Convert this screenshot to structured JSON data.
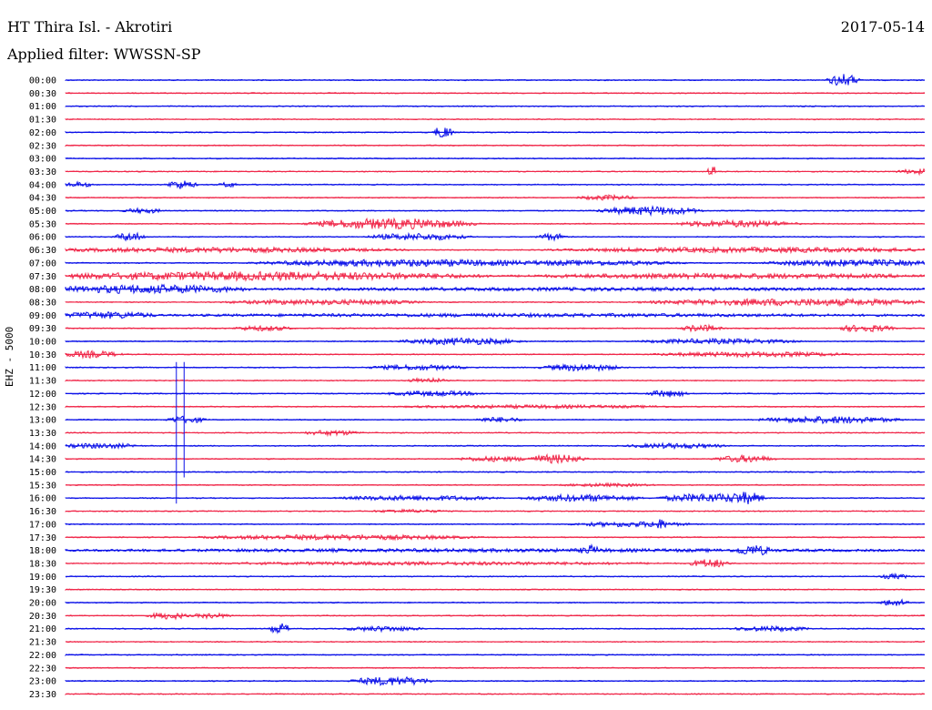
{
  "header": {
    "station": "HT Thira Isl. - Akrotiri",
    "date": "2017-05-14",
    "filter": "Applied filter: WWSSN-SP"
  },
  "channel_label": "EHZ - 5000",
  "colors": {
    "trace_a": "#0a10e8",
    "trace_b": "#f0284a"
  },
  "chart_data": {
    "type": "line",
    "title": "",
    "ylabel": "EHZ - 5000",
    "rows": [
      {
        "time": "00:00",
        "color": "trace_a",
        "bursts": [
          {
            "x": 0.89,
            "w": 0.03,
            "a": 7
          }
        ]
      },
      {
        "time": "00:30",
        "color": "trace_b",
        "bursts": []
      },
      {
        "time": "01:00",
        "color": "trace_a",
        "bursts": []
      },
      {
        "time": "01:30",
        "color": "trace_b",
        "bursts": []
      },
      {
        "time": "02:00",
        "color": "trace_a",
        "bursts": [
          {
            "x": 0.43,
            "w": 0.02,
            "a": 7
          }
        ]
      },
      {
        "time": "02:30",
        "color": "trace_b",
        "bursts": []
      },
      {
        "time": "03:00",
        "color": "trace_a",
        "bursts": []
      },
      {
        "time": "03:30",
        "color": "trace_b",
        "bursts": [
          {
            "x": 0.75,
            "w": 0.005,
            "a": 9
          },
          {
            "x": 0.97,
            "w": 0.05,
            "a": 3
          }
        ]
      },
      {
        "time": "04:00",
        "color": "trace_a",
        "bursts": [
          {
            "x": 0.0,
            "w": 0.03,
            "a": 3
          },
          {
            "x": 0.12,
            "w": 0.03,
            "a": 5
          },
          {
            "x": 0.18,
            "w": 0.02,
            "a": 3
          }
        ]
      },
      {
        "time": "04:30",
        "color": "trace_b",
        "bursts": [
          {
            "x": 0.6,
            "w": 0.06,
            "a": 3
          }
        ]
      },
      {
        "time": "05:00",
        "color": "trace_a",
        "bursts": [
          {
            "x": 0.07,
            "w": 0.04,
            "a": 3
          },
          {
            "x": 0.63,
            "w": 0.1,
            "a": 5
          }
        ]
      },
      {
        "time": "05:30",
        "color": "trace_b",
        "bursts": [
          {
            "x": 0.3,
            "w": 0.16,
            "a": 6
          },
          {
            "x": 0.72,
            "w": 0.12,
            "a": 4
          }
        ]
      },
      {
        "time": "06:00",
        "color": "trace_a",
        "bursts": [
          {
            "x": 0.06,
            "w": 0.03,
            "a": 5
          },
          {
            "x": 0.36,
            "w": 0.1,
            "a": 4
          },
          {
            "x": 0.55,
            "w": 0.03,
            "a": 4
          }
        ]
      },
      {
        "time": "06:30",
        "color": "trace_b",
        "bursts": [
          {
            "x": 0.0,
            "w": 0.36,
            "a": 3
          },
          {
            "x": 0.6,
            "w": 0.4,
            "a": 3
          }
        ]
      },
      {
        "time": "07:00",
        "color": "trace_a",
        "bursts": [
          {
            "x": 0.25,
            "w": 0.3,
            "a": 4
          },
          {
            "x": 0.5,
            "w": 0.2,
            "a": 3
          },
          {
            "x": 0.83,
            "w": 0.17,
            "a": 4
          }
        ]
      },
      {
        "time": "07:30",
        "color": "trace_b",
        "bursts": [
          {
            "x": 0.0,
            "w": 0.45,
            "a": 5
          },
          {
            "x": 0.55,
            "w": 0.45,
            "a": 3
          }
        ]
      },
      {
        "time": "08:00",
        "color": "trace_a",
        "bursts": [
          {
            "x": 0.0,
            "w": 0.2,
            "a": 5
          },
          {
            "x": 0.2,
            "w": 0.8,
            "a": 2
          }
        ]
      },
      {
        "time": "08:30",
        "color": "trace_b",
        "bursts": [
          {
            "x": 0.2,
            "w": 0.2,
            "a": 3
          },
          {
            "x": 0.7,
            "w": 0.3,
            "a": 4
          }
        ]
      },
      {
        "time": "09:00",
        "color": "trace_a",
        "bursts": [
          {
            "x": 0.0,
            "w": 0.1,
            "a": 4
          },
          {
            "x": 0.1,
            "w": 0.9,
            "a": 2
          }
        ]
      },
      {
        "time": "09:30",
        "color": "trace_b",
        "bursts": [
          {
            "x": 0.2,
            "w": 0.06,
            "a": 3
          },
          {
            "x": 0.72,
            "w": 0.04,
            "a": 4
          },
          {
            "x": 0.9,
            "w": 0.06,
            "a": 4
          }
        ]
      },
      {
        "time": "10:00",
        "color": "trace_a",
        "bursts": [
          {
            "x": 0.4,
            "w": 0.12,
            "a": 4
          },
          {
            "x": 0.68,
            "w": 0.16,
            "a": 3
          }
        ]
      },
      {
        "time": "10:30",
        "color": "trace_b",
        "bursts": [
          {
            "x": 0.0,
            "w": 0.06,
            "a": 4
          },
          {
            "x": 0.7,
            "w": 0.2,
            "a": 3
          }
        ]
      },
      {
        "time": "11:00",
        "color": "trace_a",
        "bursts": [
          {
            "x": 0.36,
            "w": 0.1,
            "a": 3
          },
          {
            "x": 0.56,
            "w": 0.08,
            "a": 4
          }
        ]
      },
      {
        "time": "11:30",
        "color": "trace_b",
        "bursts": [
          {
            "x": 0.4,
            "w": 0.04,
            "a": 3
          }
        ]
      },
      {
        "time": "12:00",
        "color": "trace_a",
        "bursts": [
          {
            "x": 0.38,
            "w": 0.1,
            "a": 3
          },
          {
            "x": 0.68,
            "w": 0.04,
            "a": 4
          }
        ]
      },
      {
        "time": "12:30",
        "color": "trace_b",
        "bursts": [
          {
            "x": 0.4,
            "w": 0.3,
            "a": 2
          }
        ]
      },
      {
        "time": "13:00",
        "color": "trace_a",
        "bursts": [
          {
            "x": 0.12,
            "w": 0.04,
            "a": 4
          },
          {
            "x": 0.48,
            "w": 0.05,
            "a": 3
          },
          {
            "x": 0.82,
            "w": 0.14,
            "a": 4
          }
        ]
      },
      {
        "time": "13:30",
        "color": "trace_b",
        "bursts": [
          {
            "x": 0.28,
            "w": 0.06,
            "a": 3
          }
        ]
      },
      {
        "time": "14:00",
        "color": "trace_a",
        "bursts": [
          {
            "x": 0.0,
            "w": 0.08,
            "a": 3
          },
          {
            "x": 0.66,
            "w": 0.1,
            "a": 3
          }
        ]
      },
      {
        "time": "14:30",
        "color": "trace_b",
        "bursts": [
          {
            "x": 0.46,
            "w": 0.08,
            "a": 3
          },
          {
            "x": 0.54,
            "w": 0.06,
            "a": 5
          },
          {
            "x": 0.76,
            "w": 0.06,
            "a": 4
          }
        ]
      },
      {
        "time": "15:00",
        "color": "trace_a",
        "bursts": []
      },
      {
        "time": "15:30",
        "color": "trace_b",
        "bursts": [
          {
            "x": 0.58,
            "w": 0.1,
            "a": 2
          }
        ]
      },
      {
        "time": "16:00",
        "color": "trace_a",
        "bursts": [
          {
            "x": 0.33,
            "w": 0.16,
            "a": 3
          },
          {
            "x": 0.54,
            "w": 0.12,
            "a": 4
          },
          {
            "x": 0.7,
            "w": 0.1,
            "a": 5
          },
          {
            "x": 0.77,
            "w": 0.04,
            "a": 7
          }
        ]
      },
      {
        "time": "16:30",
        "color": "trace_b",
        "bursts": [
          {
            "x": 0.36,
            "w": 0.08,
            "a": 2
          }
        ]
      },
      {
        "time": "17:00",
        "color": "trace_a",
        "bursts": [
          {
            "x": 0.6,
            "w": 0.12,
            "a": 3
          },
          {
            "x": 0.68,
            "w": 0.02,
            "a": 6
          }
        ]
      },
      {
        "time": "17:30",
        "color": "trace_b",
        "bursts": [
          {
            "x": 0.18,
            "w": 0.28,
            "a": 3
          }
        ]
      },
      {
        "time": "18:00",
        "color": "trace_a",
        "bursts": [
          {
            "x": 0.0,
            "w": 1.0,
            "a": 2
          },
          {
            "x": 0.6,
            "w": 0.02,
            "a": 6
          },
          {
            "x": 0.78,
            "w": 0.04,
            "a": 6
          }
        ]
      },
      {
        "time": "18:30",
        "color": "trace_b",
        "bursts": [
          {
            "x": 0.18,
            "w": 0.5,
            "a": 2
          },
          {
            "x": 0.73,
            "w": 0.04,
            "a": 5
          }
        ]
      },
      {
        "time": "19:00",
        "color": "trace_a",
        "bursts": [
          {
            "x": 0.95,
            "w": 0.03,
            "a": 3
          }
        ]
      },
      {
        "time": "19:30",
        "color": "trace_b",
        "bursts": []
      },
      {
        "time": "20:00",
        "color": "trace_a",
        "bursts": [
          {
            "x": 0.95,
            "w": 0.03,
            "a": 4
          }
        ]
      },
      {
        "time": "20:30",
        "color": "trace_b",
        "bursts": [
          {
            "x": 0.1,
            "w": 0.04,
            "a": 4
          },
          {
            "x": 0.15,
            "w": 0.04,
            "a": 3
          }
        ]
      },
      {
        "time": "21:00",
        "color": "trace_a",
        "bursts": [
          {
            "x": 0.24,
            "w": 0.02,
            "a": 6
          },
          {
            "x": 0.33,
            "w": 0.08,
            "a": 3
          },
          {
            "x": 0.78,
            "w": 0.08,
            "a": 3
          }
        ]
      },
      {
        "time": "21:30",
        "color": "trace_b",
        "bursts": []
      },
      {
        "time": "22:00",
        "color": "trace_a",
        "bursts": []
      },
      {
        "time": "22:30",
        "color": "trace_b",
        "bursts": []
      },
      {
        "time": "23:00",
        "color": "trace_a",
        "bursts": [
          {
            "x": 0.34,
            "w": 0.08,
            "a": 5
          }
        ]
      },
      {
        "time": "23:30",
        "color": "trace_b",
        "bursts": []
      }
    ],
    "spikes": [
      {
        "time_from": "11:00",
        "time_to": "16:00",
        "x": 0.129,
        "color": "trace_a"
      },
      {
        "time_from": "11:00",
        "time_to": "15:00",
        "x": 0.138,
        "color": "trace_a"
      }
    ]
  }
}
